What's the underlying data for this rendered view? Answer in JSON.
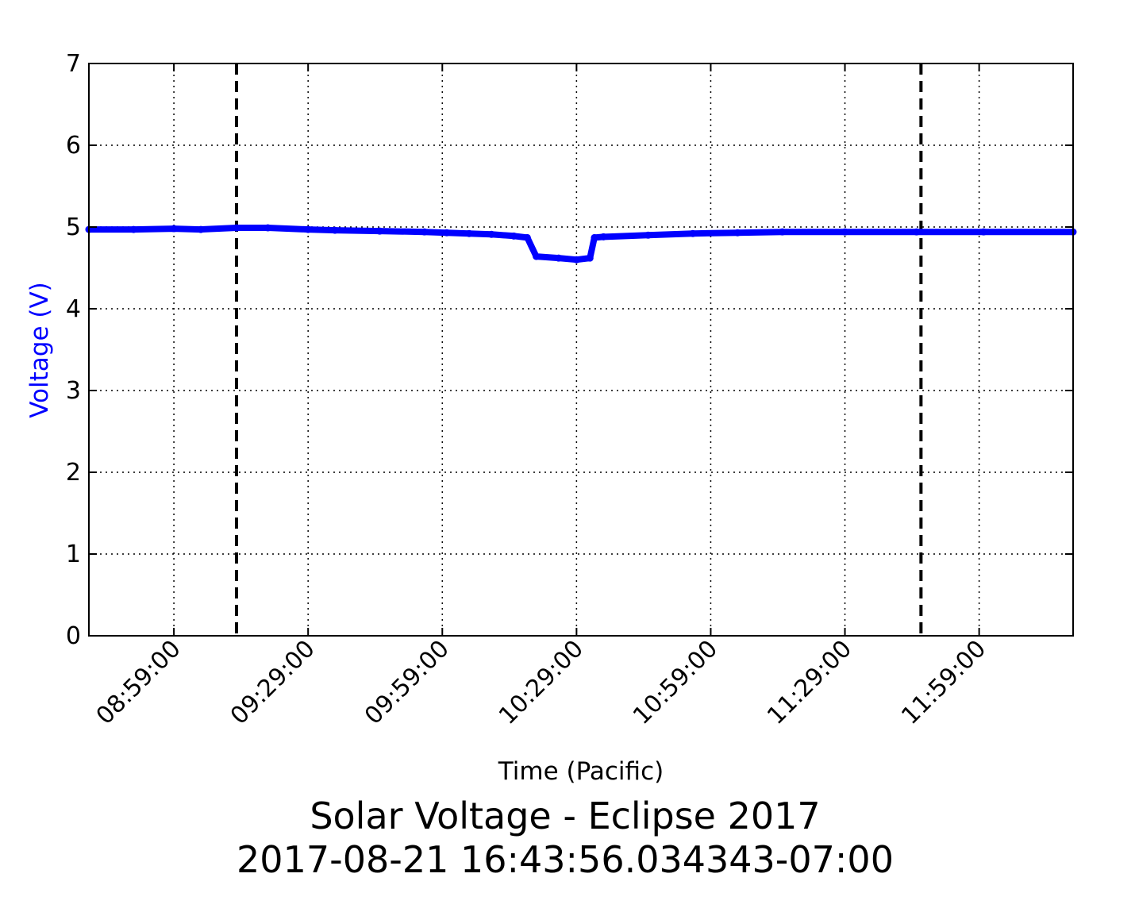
{
  "chart_data": {
    "type": "line",
    "title": "Solar Voltage - Eclipse 2017",
    "subtitle": "2017-08-21 16:43:56.034343-07:00",
    "xlabel": "Time (Pacific)",
    "ylabel": "Voltage (V)",
    "ylim": [
      0,
      7
    ],
    "yticks": [
      "0",
      "1",
      "2",
      "3",
      "4",
      "5",
      "6",
      "7"
    ],
    "xlim": [
      "08:40:00",
      "12:20:00"
    ],
    "xticks": [
      "08:59:00",
      "09:29:00",
      "09:59:00",
      "10:29:00",
      "10:59:00",
      "11:29:00",
      "11:59:00"
    ],
    "grid": true,
    "vlines": [
      {
        "x": "09:13:00",
        "style": "dashed",
        "color": "#000000"
      },
      {
        "x": "11:46:00",
        "style": "dashed",
        "color": "#000000"
      }
    ],
    "series": [
      {
        "color": "#0000ff",
        "marker": "dot",
        "x": [
          "08:40:00",
          "08:50:00",
          "08:59:00",
          "09:05:00",
          "09:13:00",
          "09:20:00",
          "09:29:00",
          "09:35:00",
          "09:45:00",
          "09:55:00",
          "10:00:00",
          "10:05:00",
          "10:10:00",
          "10:15:00",
          "10:18:00",
          "10:20:00",
          "10:25:00",
          "10:29:00",
          "10:32:00",
          "10:33:00",
          "10:35:00",
          "10:45:00",
          "10:55:00",
          "11:05:00",
          "11:15:00",
          "11:29:00",
          "11:45:00",
          "12:00:00",
          "12:20:00"
        ],
        "values": [
          4.97,
          4.97,
          4.98,
          4.97,
          4.99,
          4.99,
          4.97,
          4.96,
          4.95,
          4.94,
          4.93,
          4.92,
          4.91,
          4.89,
          4.87,
          4.64,
          4.62,
          4.6,
          4.62,
          4.87,
          4.88,
          4.9,
          4.92,
          4.93,
          4.94,
          4.94,
          4.94,
          4.94,
          4.94
        ]
      }
    ]
  }
}
